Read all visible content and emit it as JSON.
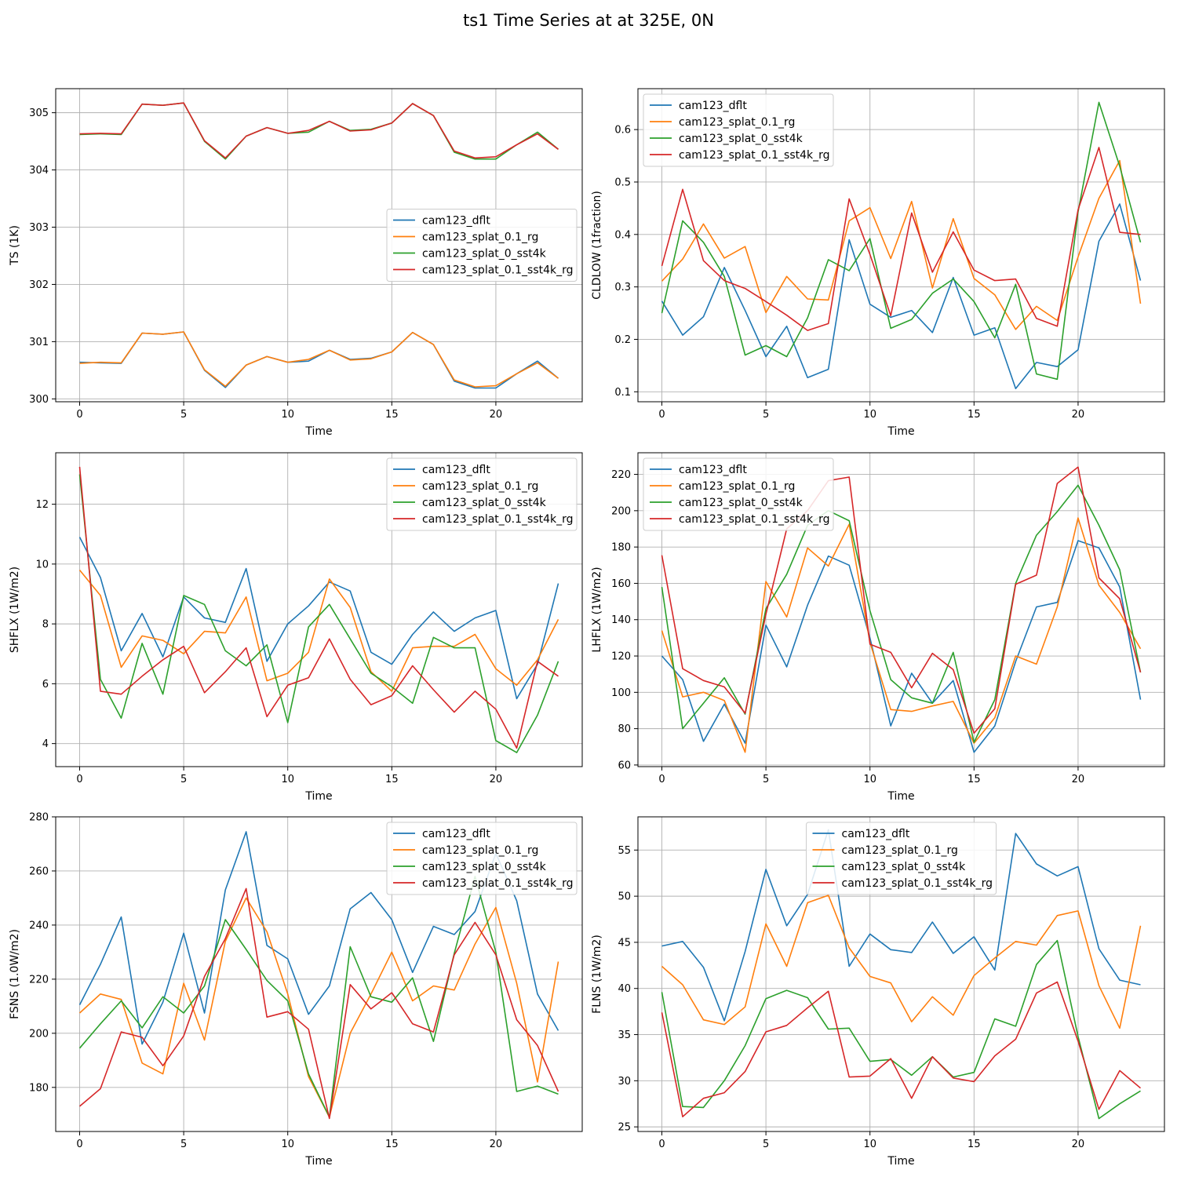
{
  "figure": {
    "title": "ts1 Time Series at at 325E, 0N"
  },
  "colors": {
    "cam123_dflt": "#1f77b4",
    "cam123_splat_0.1_rg": "#ff7f0e",
    "cam123_splat_0_sst4k": "#2ca02c",
    "cam123_splat_0.1_sst4k_rg": "#d62728",
    "grid": "#b0b0b0"
  },
  "chart_data": [
    {
      "id": "ts",
      "type": "line",
      "title": "",
      "xlabel": "Time",
      "ylabel": "TS (1K)",
      "xlim": [
        -1.15,
        24.15
      ],
      "ylim": [
        299.95,
        305.42
      ],
      "xticks": [
        0,
        5,
        10,
        15,
        20
      ],
      "yticks": [
        300,
        301,
        302,
        303,
        304,
        305
      ],
      "legend": "center-right",
      "grid": true,
      "x": [
        0,
        1,
        2,
        3,
        4,
        5,
        6,
        7,
        8,
        9,
        10,
        11,
        12,
        13,
        14,
        15,
        16,
        17,
        18,
        19,
        20,
        21,
        22,
        23
      ],
      "series": [
        {
          "name": "cam123_dflt",
          "color": "#1f77b4",
          "values": [
            300.64,
            300.63,
            300.62,
            301.15,
            301.13,
            301.17,
            300.5,
            300.2,
            300.59,
            300.74,
            300.64,
            300.66,
            300.85,
            300.69,
            300.71,
            300.82,
            301.16,
            300.95,
            300.31,
            300.19,
            300.19,
            300.44,
            300.66,
            300.36
          ]
        },
        {
          "name": "cam123_splat_0.1_rg",
          "color": "#ff7f0e",
          "values": [
            300.62,
            300.64,
            300.63,
            301.15,
            301.13,
            301.17,
            300.51,
            300.22,
            300.59,
            300.74,
            300.64,
            300.69,
            300.85,
            300.68,
            300.7,
            300.82,
            301.16,
            300.95,
            300.33,
            300.21,
            300.23,
            300.44,
            300.63,
            300.36
          ]
        },
        {
          "name": "cam123_splat_0_sst4k",
          "color": "#2ca02c",
          "values": [
            304.62,
            304.63,
            304.62,
            305.15,
            305.13,
            305.17,
            304.5,
            304.19,
            304.59,
            304.74,
            304.64,
            304.66,
            304.85,
            304.69,
            304.71,
            304.82,
            305.16,
            304.95,
            304.31,
            304.19,
            304.19,
            304.44,
            304.66,
            304.36
          ]
        },
        {
          "name": "cam123_splat_0.1_sst4k_rg",
          "color": "#d62728",
          "values": [
            304.63,
            304.64,
            304.63,
            305.15,
            305.13,
            305.17,
            304.51,
            304.21,
            304.59,
            304.74,
            304.64,
            304.69,
            304.85,
            304.68,
            304.7,
            304.82,
            305.16,
            304.95,
            304.33,
            304.21,
            304.23,
            304.44,
            304.63,
            304.36
          ]
        }
      ]
    },
    {
      "id": "cldlow",
      "type": "line",
      "title": "",
      "xlabel": "Time",
      "ylabel": "CLDLOW (1fraction)",
      "xlim": [
        -1.15,
        24.15
      ],
      "ylim": [
        0.081,
        0.678
      ],
      "xticks": [
        0,
        5,
        10,
        15,
        20
      ],
      "yticks": [
        0.1,
        0.2,
        0.3,
        0.4,
        0.5,
        0.6
      ],
      "legend": "upper-left",
      "grid": true,
      "x": [
        0,
        1,
        2,
        3,
        4,
        5,
        6,
        7,
        8,
        9,
        10,
        11,
        12,
        13,
        14,
        15,
        16,
        17,
        18,
        19,
        20,
        21,
        22,
        23
      ],
      "series": [
        {
          "name": "cam123_dflt",
          "color": "#1f77b4",
          "values": [
            0.273,
            0.208,
            0.243,
            0.337,
            0.255,
            0.167,
            0.225,
            0.127,
            0.143,
            0.39,
            0.267,
            0.242,
            0.255,
            0.213,
            0.318,
            0.208,
            0.222,
            0.106,
            0.156,
            0.148,
            0.18,
            0.387,
            0.458,
            0.312
          ]
        },
        {
          "name": "cam123_splat_0.1_rg",
          "color": "#ff7f0e",
          "values": [
            0.311,
            0.353,
            0.42,
            0.355,
            0.377,
            0.251,
            0.32,
            0.277,
            0.275,
            0.426,
            0.451,
            0.354,
            0.463,
            0.298,
            0.43,
            0.316,
            0.285,
            0.219,
            0.263,
            0.236,
            0.357,
            0.469,
            0.541,
            0.268
          ]
        },
        {
          "name": "cam123_splat_0_sst4k",
          "color": "#2ca02c",
          "values": [
            0.25,
            0.426,
            0.385,
            0.32,
            0.17,
            0.188,
            0.167,
            0.241,
            0.352,
            0.331,
            0.392,
            0.221,
            0.238,
            0.288,
            0.315,
            0.272,
            0.203,
            0.305,
            0.134,
            0.124,
            0.443,
            0.652,
            0.53,
            0.385
          ]
        },
        {
          "name": "cam123_splat_0.1_sst4k_rg",
          "color": "#d62728",
          "values": [
            0.34,
            0.486,
            0.35,
            0.312,
            0.297,
            0.272,
            0.246,
            0.217,
            0.23,
            0.468,
            0.362,
            0.245,
            0.441,
            0.328,
            0.405,
            0.332,
            0.312,
            0.315,
            0.24,
            0.225,
            0.447,
            0.566,
            0.404,
            0.4
          ]
        }
      ]
    },
    {
      "id": "shflx",
      "type": "line",
      "title": "",
      "xlabel": "Time",
      "ylabel": "SHFLX (1W/m2)",
      "xlim": [
        -1.15,
        24.15
      ],
      "ylim": [
        3.23,
        13.72
      ],
      "xticks": [
        0,
        5,
        10,
        15,
        20
      ],
      "yticks": [
        4,
        6,
        8,
        10,
        12
      ],
      "legend": "upper-right",
      "grid": true,
      "x": [
        0,
        1,
        2,
        3,
        4,
        5,
        6,
        7,
        8,
        9,
        10,
        11,
        12,
        13,
        14,
        15,
        16,
        17,
        18,
        19,
        20,
        21,
        22,
        23
      ],
      "series": [
        {
          "name": "cam123_dflt",
          "color": "#1f77b4",
          "values": [
            10.9,
            9.55,
            7.1,
            8.35,
            6.9,
            8.9,
            8.2,
            8.05,
            9.85,
            6.75,
            8.0,
            8.6,
            9.4,
            9.1,
            7.05,
            6.65,
            7.65,
            8.4,
            7.75,
            8.2,
            8.45,
            5.5,
            6.65,
            9.35
          ]
        },
        {
          "name": "cam123_splat_0.1_rg",
          "color": "#ff7f0e",
          "values": [
            9.8,
            8.95,
            6.55,
            7.6,
            7.45,
            7.0,
            7.75,
            7.7,
            8.9,
            6.1,
            6.35,
            7.05,
            9.5,
            8.55,
            6.4,
            5.75,
            7.2,
            7.25,
            7.25,
            7.65,
            6.5,
            5.95,
            6.8,
            8.15
          ]
        },
        {
          "name": "cam123_splat_0_sst4k",
          "color": "#2ca02c",
          "values": [
            13.0,
            6.15,
            4.85,
            7.35,
            5.65,
            8.95,
            8.65,
            7.1,
            6.6,
            7.3,
            4.7,
            7.9,
            8.65,
            7.5,
            6.35,
            5.9,
            5.35,
            7.55,
            7.2,
            7.2,
            4.1,
            3.7,
            4.95,
            6.75
          ]
        },
        {
          "name": "cam123_splat_0.1_sst4k_rg",
          "color": "#d62728",
          "values": [
            13.25,
            5.75,
            5.65,
            6.25,
            6.8,
            7.25,
            5.7,
            6.4,
            7.2,
            4.9,
            5.95,
            6.2,
            7.5,
            6.15,
            5.3,
            5.6,
            6.6,
            5.8,
            5.05,
            5.75,
            5.15,
            3.85,
            6.75,
            6.25
          ]
        }
      ]
    },
    {
      "id": "lhflx",
      "type": "line",
      "title": "",
      "xlabel": "Time",
      "ylabel": "LHFLX (1W/m2)",
      "xlim": [
        -1.15,
        24.15
      ],
      "ylim": [
        59.1,
        231.9
      ],
      "xticks": [
        0,
        5,
        10,
        15,
        20
      ],
      "yticks": [
        60,
        80,
        100,
        120,
        140,
        160,
        180,
        200,
        220
      ],
      "legend": "upper-left",
      "grid": true,
      "x": [
        0,
        1,
        2,
        3,
        4,
        5,
        6,
        7,
        8,
        9,
        10,
        11,
        12,
        13,
        14,
        15,
        16,
        17,
        18,
        19,
        20,
        21,
        22,
        23
      ],
      "series": [
        {
          "name": "cam123_dflt",
          "color": "#1f77b4",
          "values": [
            120,
            107,
            73,
            93.5,
            72,
            137,
            114,
            148,
            175,
            170,
            130,
            81.5,
            110.5,
            94,
            106.5,
            67,
            81.5,
            117,
            147,
            149.5,
            183.5,
            179.5,
            158,
            96
          ]
        },
        {
          "name": "cam123_splat_0.1_rg",
          "color": "#ff7f0e",
          "values": [
            134,
            97.5,
            100,
            95.5,
            67,
            161,
            141.5,
            179.5,
            169.5,
            192.5,
            127.5,
            90.5,
            89.5,
            92.5,
            95,
            72,
            86,
            120,
            115.5,
            147,
            196,
            159,
            144,
            124
          ]
        },
        {
          "name": "cam123_splat_0_sst4k",
          "color": "#2ca02c",
          "values": [
            158,
            80,
            94,
            108,
            88,
            146,
            165,
            192,
            200,
            194.5,
            145,
            107,
            97,
            94,
            122,
            72.5,
            96,
            160,
            186.5,
            199.5,
            214,
            192,
            167.5,
            111
          ]
        },
        {
          "name": "cam123_splat_0.1_sst4k_rg",
          "color": "#d62728",
          "values": [
            175.5,
            113,
            106.5,
            103,
            88.5,
            143,
            190,
            200,
            216.5,
            218.5,
            126.5,
            122,
            102.5,
            121.5,
            112.5,
            77.5,
            91,
            159.5,
            164.5,
            215,
            224,
            163,
            151.5,
            111
          ]
        }
      ]
    },
    {
      "id": "fsns",
      "type": "line",
      "title": "",
      "xlabel": "Time",
      "ylabel": "FSNS (1.0W/m2)",
      "xlim": [
        -1.15,
        24.15
      ],
      "ylim": [
        163.7,
        280.0
      ],
      "xticks": [
        0,
        5,
        10,
        15,
        20
      ],
      "yticks": [
        180,
        200,
        220,
        240,
        260,
        280
      ],
      "legend": "upper-right",
      "grid": true,
      "x": [
        0,
        1,
        2,
        3,
        4,
        5,
        6,
        7,
        8,
        9,
        10,
        11,
        12,
        13,
        14,
        15,
        16,
        17,
        18,
        19,
        20,
        21,
        22,
        23
      ],
      "series": [
        {
          "name": "cam123_dflt",
          "color": "#1f77b4",
          "values": [
            210.5,
            225.5,
            243,
            196,
            211.5,
            237,
            207.5,
            253,
            274.5,
            232.5,
            227.5,
            207,
            217.5,
            246,
            252,
            242,
            222.5,
            239.5,
            236.5,
            245,
            266.5,
            249,
            214.5,
            201
          ]
        },
        {
          "name": "cam123_splat_0.1_rg",
          "color": "#ff7f0e",
          "values": [
            207.5,
            214.5,
            212.5,
            189,
            185,
            218.5,
            197.5,
            234,
            250,
            237.5,
            214.5,
            184,
            169,
            200,
            214.5,
            230,
            212,
            217.5,
            216,
            233,
            246.5,
            218.5,
            182,
            226.5
          ]
        },
        {
          "name": "cam123_splat_0_sst4k",
          "color": "#2ca02c",
          "values": [
            194.5,
            203.5,
            212,
            202,
            213.5,
            207.5,
            217.5,
            242,
            231,
            219.5,
            212,
            185,
            169,
            232,
            213.5,
            211.5,
            220.5,
            197,
            229.5,
            258,
            230,
            178.5,
            180.5,
            177.5
          ]
        },
        {
          "name": "cam123_splat_0.1_sst4k_rg",
          "color": "#d62728",
          "values": [
            173,
            179.5,
            200.5,
            198.5,
            188,
            199,
            221,
            235,
            253.5,
            206,
            208,
            201.5,
            168.5,
            218,
            209,
            215,
            203.5,
            200.5,
            229,
            241,
            229,
            205,
            195.5,
            178.5
          ]
        }
      ]
    },
    {
      "id": "flns",
      "type": "line",
      "title": "",
      "xlabel": "Time",
      "ylabel": "FLNS (1W/m2)",
      "xlim": [
        -1.15,
        24.15
      ],
      "ylim": [
        24.5,
        58.6
      ],
      "xticks": [
        0,
        5,
        10,
        15,
        20
      ],
      "yticks": [
        25,
        30,
        35,
        40,
        45,
        50,
        55
      ],
      "legend": "upper-center",
      "grid": true,
      "x": [
        0,
        1,
        2,
        3,
        4,
        5,
        6,
        7,
        8,
        9,
        10,
        11,
        12,
        13,
        14,
        15,
        16,
        17,
        18,
        19,
        20,
        21,
        22,
        23
      ],
      "series": [
        {
          "name": "cam123_dflt",
          "color": "#1f77b4",
          "values": [
            44.6,
            45.1,
            42.3,
            36.5,
            44,
            52.9,
            46.8,
            50.2,
            57.2,
            42.4,
            45.9,
            44.2,
            43.9,
            47.2,
            43.8,
            45.6,
            42,
            56.8,
            53.5,
            52.2,
            53.2,
            44.3,
            40.9,
            40.4
          ]
        },
        {
          "name": "cam123_splat_0.1_rg",
          "color": "#ff7f0e",
          "values": [
            42.4,
            40.4,
            36.6,
            36.1,
            38,
            47,
            42.4,
            49.3,
            50.1,
            44.4,
            41.3,
            40.6,
            36.4,
            39.1,
            37.1,
            41.4,
            43.3,
            45.1,
            44.7,
            47.9,
            48.4,
            40.3,
            35.7,
            46.8
          ]
        },
        {
          "name": "cam123_splat_0_sst4k",
          "color": "#2ca02c",
          "values": [
            39.6,
            27.2,
            27.1,
            30,
            33.8,
            38.9,
            39.8,
            39,
            35.6,
            35.7,
            32.1,
            32.3,
            30.6,
            32.6,
            30.4,
            30.9,
            36.7,
            35.9,
            42.6,
            45.2,
            34.8,
            25.9,
            27.5,
            28.9
          ]
        },
        {
          "name": "cam123_splat_0.1_sst4k_rg",
          "color": "#d62728",
          "values": [
            37.4,
            26.1,
            28.1,
            28.7,
            31,
            35.3,
            36,
            37.9,
            39.7,
            30.4,
            30.5,
            32.4,
            28.1,
            32.6,
            30.3,
            29.9,
            32.7,
            34.5,
            39.5,
            40.7,
            34.3,
            26.9,
            31.1,
            29.2
          ]
        }
      ]
    }
  ]
}
